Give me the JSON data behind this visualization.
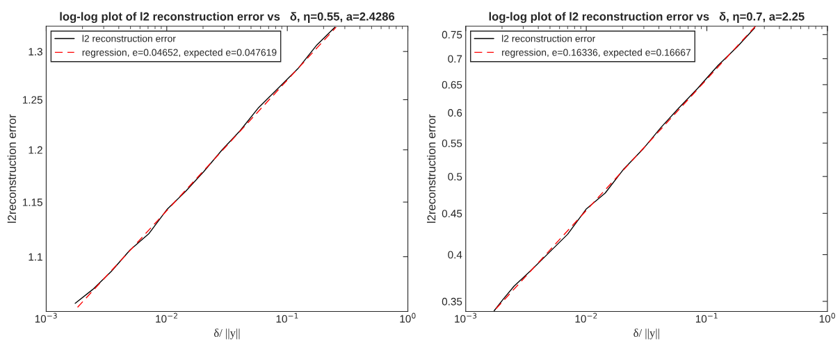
{
  "chart_data": [
    {
      "type": "line",
      "title": "log-log plot of l2 reconstruction error vs   δ, η=0.55, a=2.4286",
      "xlabel": "δ/ ||y||",
      "ylabel": "l2reconstruction error",
      "log": "xy",
      "grid": false,
      "legend": "top left",
      "xlim": [
        0.001,
        1
      ],
      "xticks": [
        {
          "value": 0.001,
          "label": "10$^{−3}$"
        },
        {
          "value": 0.01,
          "label": "10$^{−2}$"
        },
        {
          "value": 0.1,
          "label": "10$^{−1}$"
        },
        {
          "value": 1,
          "label": "10$^{0}$"
        }
      ],
      "ylim": [
        1.052,
        1.327
      ],
      "yticks": [
        1.1,
        1.15,
        1.2,
        1.25,
        1.3
      ],
      "series": [
        {
          "name": "l2 reconstruction error",
          "color": "#000000",
          "line_style": "solid",
          "x": [
            0.00174,
            0.00243,
            0.00347,
            0.00496,
            0.00713,
            0.01002,
            0.0143,
            0.0203,
            0.0288,
            0.0407,
            0.0578,
            0.1225,
            0.176,
            0.248
          ],
          "values": [
            1.059,
            1.071,
            1.087,
            1.106,
            1.121,
            1.143,
            1.16,
            1.179,
            1.2,
            1.219,
            1.242,
            1.282,
            1.307,
            1.326
          ]
        },
        {
          "name": "regression, e=0.04652, expected e=0.047619",
          "color": "#ff0000",
          "line_style": "dashed",
          "x": [
            0.00182,
            0.254
          ],
          "values": [
            1.0556,
            1.326
          ]
        }
      ]
    },
    {
      "type": "line",
      "title": "log-log plot of l2 reconstruction error vs   δ, η=0.7, a=2.25",
      "xlabel": "δ/ ||y||",
      "ylabel": "l2reconstruction error",
      "log": "xy",
      "grid": false,
      "legend": "top left",
      "xlim": [
        0.001,
        1
      ],
      "xticks": [
        {
          "value": 0.001,
          "label": "10$^{−3}$"
        },
        {
          "value": 0.01,
          "label": "10$^{−2}$"
        },
        {
          "value": 0.1,
          "label": "10$^{−1}$"
        },
        {
          "value": 1,
          "label": "10$^{0}$"
        }
      ],
      "ylim": [
        0.34,
        0.768
      ],
      "yticks": [
        0.35,
        0.4,
        0.45,
        0.5,
        0.55,
        0.6,
        0.65,
        0.7,
        0.75
      ],
      "series": [
        {
          "name": "l2 reconstruction error",
          "color": "#000000",
          "line_style": "solid",
          "x": [
            0.00172,
            0.00205,
            0.00252,
            0.00346,
            0.00487,
            0.007,
            0.01003,
            0.01435,
            0.0203,
            0.0294,
            0.0416,
            0.0589,
            0.0834,
            0.1234,
            0.179,
            0.249
          ],
          "values": [
            0.3407,
            0.3523,
            0.3656,
            0.382,
            0.4018,
            0.4239,
            0.4559,
            0.4769,
            0.5101,
            0.5403,
            0.5751,
            0.6087,
            0.6426,
            0.6863,
            0.7245,
            0.7643
          ]
        },
        {
          "name": "regression, e=0.16336, expected e=0.16667",
          "color": "#ff0000",
          "line_style": "dashed",
          "x": [
            0.00178,
            0.253
          ],
          "values": [
            0.3426,
            0.768
          ]
        }
      ]
    }
  ]
}
